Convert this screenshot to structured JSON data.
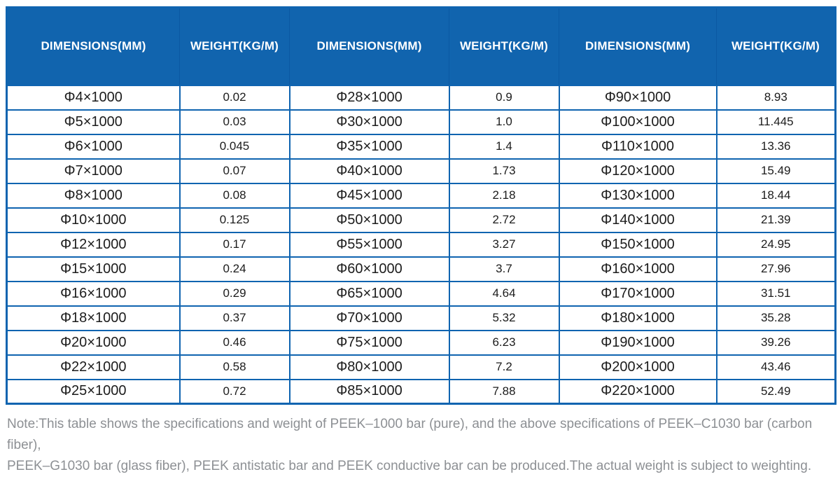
{
  "colors": {
    "header_bg": "#1164ae",
    "border": "#0f64b0",
    "header_separator": "#0b58a2",
    "cell_text": "#1c1c1c",
    "note_text": "#8d9094"
  },
  "table": {
    "columns": [
      "DIMENSIONS(MM)",
      "WEIGHT(KG/M)",
      "DIMENSIONS(MM)",
      "WEIGHT(KG/M)",
      "DIMENSIONS(MM)",
      "WEIGHT(KG/M)"
    ],
    "rows": [
      [
        "Φ4×1000",
        "0.02",
        "Φ28×1000",
        "0.9",
        "Φ90×1000",
        "8.93"
      ],
      [
        "Φ5×1000",
        "0.03",
        "Φ30×1000",
        "1.0",
        "Φ100×1000",
        "11.445"
      ],
      [
        "Φ6×1000",
        "0.045",
        "Φ35×1000",
        "1.4",
        "Φ110×1000",
        "13.36"
      ],
      [
        "Φ7×1000",
        "0.07",
        "Φ40×1000",
        "1.73",
        "Φ120×1000",
        "15.49"
      ],
      [
        "Φ8×1000",
        "0.08",
        "Φ45×1000",
        "2.18",
        "Φ130×1000",
        "18.44"
      ],
      [
        "Φ10×1000",
        "0.125",
        "Φ50×1000",
        "2.72",
        "Φ140×1000",
        "21.39"
      ],
      [
        "Φ12×1000",
        "0.17",
        "Φ55×1000",
        "3.27",
        "Φ150×1000",
        "24.95"
      ],
      [
        "Φ15×1000",
        "0.24",
        "Φ60×1000",
        "3.7",
        "Φ160×1000",
        "27.96"
      ],
      [
        "Φ16×1000",
        "0.29",
        "Φ65×1000",
        "4.64",
        "Φ170×1000",
        "31.51"
      ],
      [
        "Φ18×1000",
        "0.37",
        "Φ70×1000",
        "5.32",
        "Φ180×1000",
        "35.28"
      ],
      [
        "Φ20×1000",
        "0.46",
        "Φ75×1000",
        "6.23",
        "Φ190×1000",
        "39.26"
      ],
      [
        "Φ22×1000",
        "0.58",
        "Φ80×1000",
        "7.2",
        "Φ200×1000",
        "43.46"
      ],
      [
        "Φ25×1000",
        "0.72",
        "Φ85×1000",
        "7.88",
        "Φ220×1000",
        "52.49"
      ]
    ]
  },
  "note": {
    "line1": "Note:This table shows the specifications and weight of PEEK–1000 bar (pure), and the above specifications of PEEK–C1030 bar (carbon fiber),",
    "line2": "PEEK–G1030 bar (glass fiber), PEEK antistatic bar and PEEK conductive bar can be produced.The actual weight is subject to weighting."
  }
}
